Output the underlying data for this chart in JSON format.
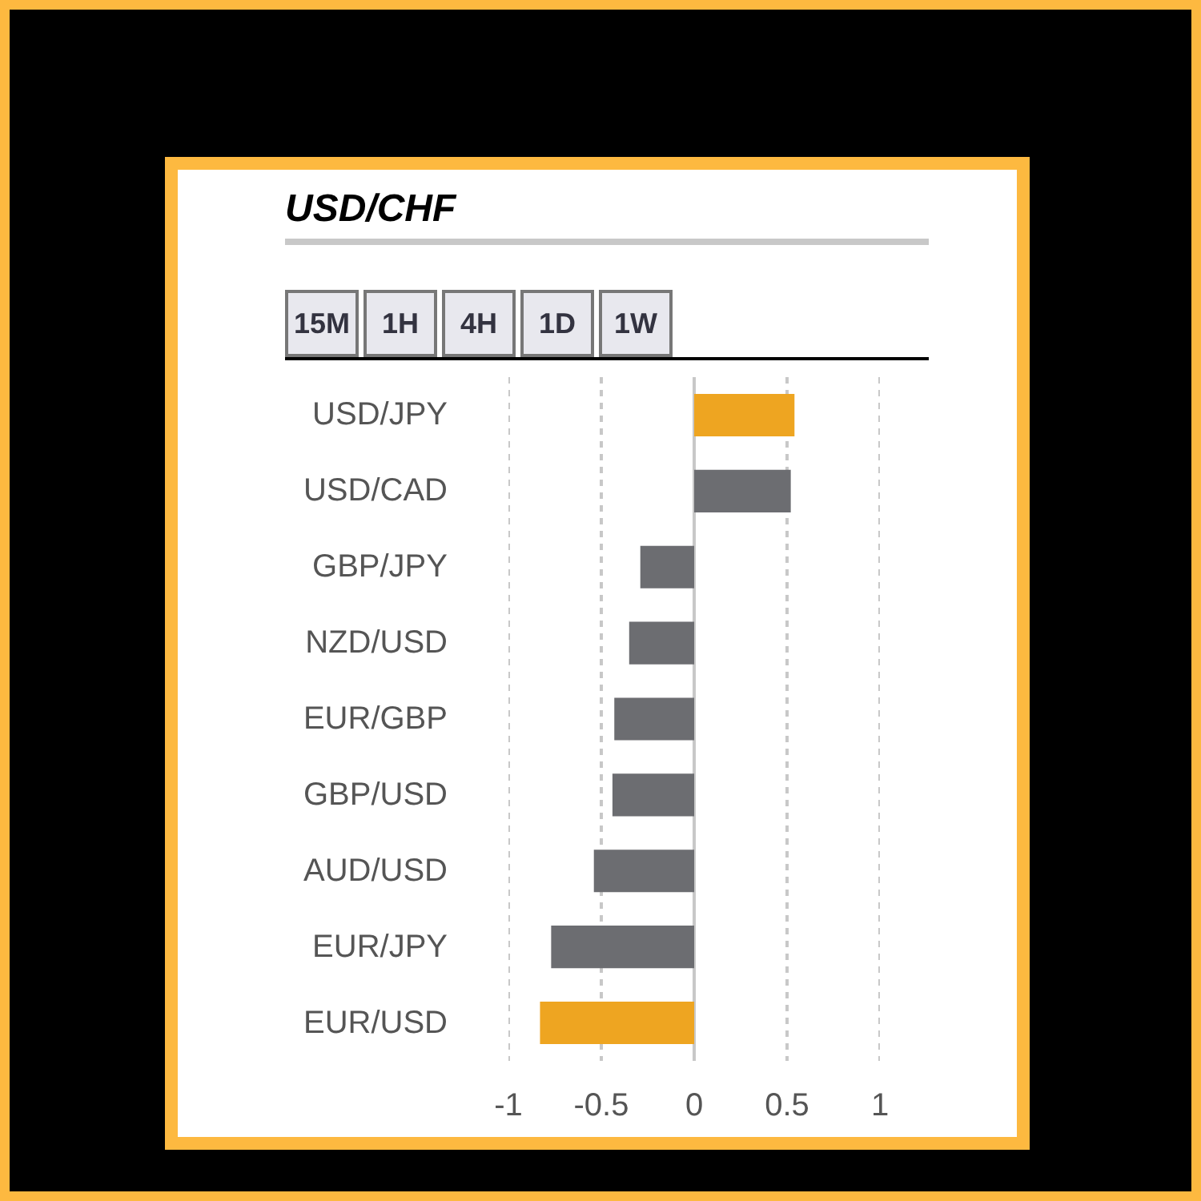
{
  "chart_data": {
    "type": "bar",
    "orientation": "horizontal",
    "title": "USD/CHF",
    "categories": [
      "USD/JPY",
      "USD/CAD",
      "GBP/JPY",
      "NZD/USD",
      "EUR/GBP",
      "GBP/USD",
      "AUD/USD",
      "EUR/JPY",
      "EUR/USD"
    ],
    "values": [
      0.54,
      0.52,
      -0.29,
      -0.35,
      -0.43,
      -0.44,
      -0.54,
      -0.77,
      -0.83
    ],
    "colors": [
      "#eea521",
      "#6c6d71",
      "#6c6d71",
      "#6c6d71",
      "#6c6d71",
      "#6c6d71",
      "#6c6d71",
      "#6c6d71",
      "#eea521"
    ],
    "xlim": [
      -1,
      1
    ],
    "xticks": [
      -1,
      -0.5,
      0,
      0.5,
      1
    ],
    "grid": "x",
    "annotations": [
      "15M",
      "1H",
      "4H",
      "1D",
      "1W"
    ]
  }
}
